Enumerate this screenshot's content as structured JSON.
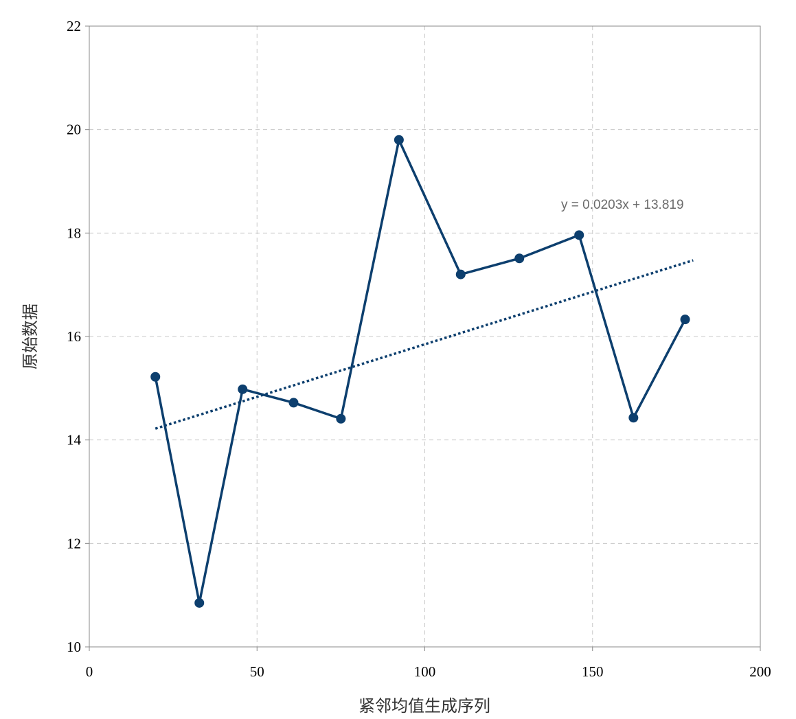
{
  "chart_data": {
    "type": "scatter",
    "xlabel": "紧邻均值生成序列",
    "ylabel": "原始数据",
    "xlim": [
      0,
      200
    ],
    "ylim": [
      10,
      22
    ],
    "x_ticks": [
      0,
      50,
      100,
      150,
      200
    ],
    "y_ticks": [
      10,
      12,
      14,
      16,
      18,
      20,
      22
    ],
    "grid": true,
    "series": [
      {
        "color": "#0d3f6e",
        "points": [
          {
            "x": 19.7,
            "y": 15.22
          },
          {
            "x": 32.8,
            "y": 10.85
          },
          {
            "x": 45.7,
            "y": 14.98
          },
          {
            "x": 60.9,
            "y": 14.72
          },
          {
            "x": 75.0,
            "y": 14.41
          },
          {
            "x": 92.3,
            "y": 19.8
          },
          {
            "x": 110.7,
            "y": 17.2
          },
          {
            "x": 128.2,
            "y": 17.51
          },
          {
            "x": 146.0,
            "y": 17.96
          },
          {
            "x": 162.2,
            "y": 14.43
          },
          {
            "x": 177.6,
            "y": 16.33
          }
        ]
      }
    ],
    "trendline": {
      "type": "linear",
      "slope": 0.0203,
      "intercept": 13.819,
      "x_range": [
        19.7,
        180
      ],
      "label": "y = 0.0203x + 13.819",
      "color": "#0d3f6e"
    }
  }
}
